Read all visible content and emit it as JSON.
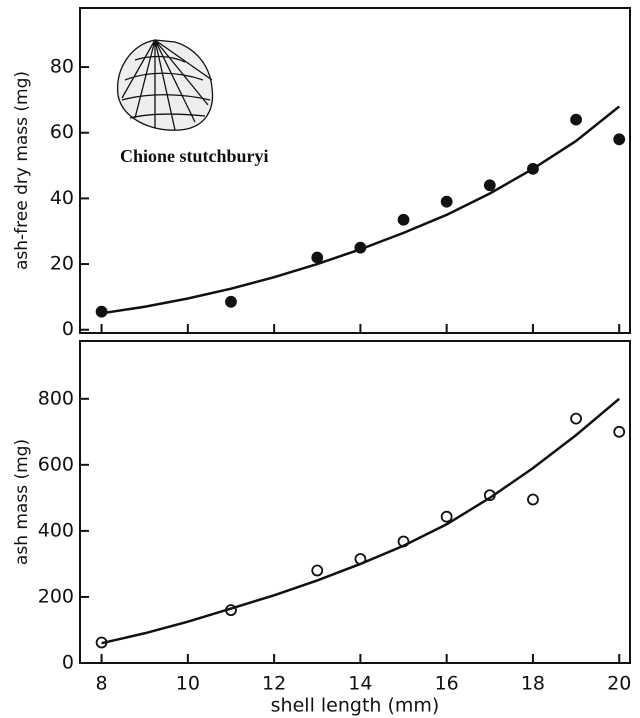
{
  "chart_data": [
    {
      "type": "scatter",
      "ylabel": "ash-free dry mass (mg)",
      "annotation": "Chione stutchburyi",
      "xlim": [
        7.5,
        20.25
      ],
      "ylim": [
        -1,
        98
      ],
      "yticks": [
        0,
        20,
        40,
        60,
        80
      ],
      "series": [
        {
          "x": [
            8,
            11,
            13,
            14,
            15,
            16,
            17,
            18,
            19,
            20
          ],
          "values": [
            5.5,
            8.5,
            22,
            25,
            33.5,
            39,
            44,
            49,
            64,
            58
          ],
          "marker": "filled",
          "color": "#111"
        },
        {
          "x": [
            8,
            9,
            10,
            11,
            12,
            13,
            14,
            15,
            16,
            17,
            18,
            19,
            20
          ],
          "values": [
            5,
            7,
            9.5,
            12.5,
            16,
            20,
            24.5,
            29.5,
            35,
            41.5,
            49,
            57.5,
            68
          ],
          "style": "line",
          "color": "#111"
        }
      ]
    },
    {
      "type": "scatter",
      "ylabel": "ash mass (mg)",
      "xlabel": "shell length (mm)",
      "xlim": [
        7.5,
        20.25
      ],
      "xticks": [
        8,
        10,
        12,
        14,
        16,
        18,
        20
      ],
      "ylim": [
        0,
        975
      ],
      "yticks": [
        0,
        200,
        400,
        600,
        800
      ],
      "series": [
        {
          "x": [
            8,
            11,
            13,
            14,
            15,
            16,
            17,
            18,
            19,
            20
          ],
          "values": [
            62,
            160,
            280,
            315,
            368,
            443,
            508,
            495,
            740,
            700
          ],
          "marker": "open",
          "color": "#111"
        },
        {
          "x": [
            8,
            9,
            10,
            11,
            12,
            13,
            14,
            15,
            16,
            17,
            18,
            19,
            20
          ],
          "values": [
            60,
            90,
            125,
            165,
            205,
            250,
            300,
            355,
            420,
            500,
            590,
            690,
            800
          ],
          "style": "line",
          "color": "#111"
        }
      ]
    }
  ]
}
